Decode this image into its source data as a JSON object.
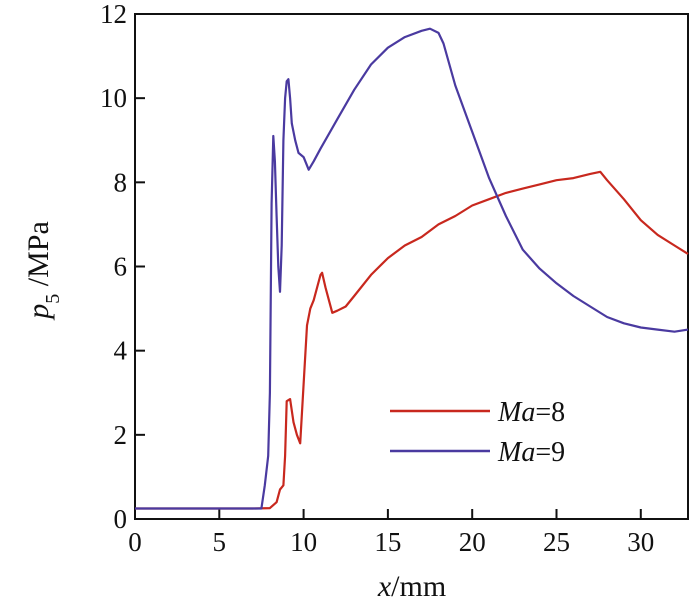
{
  "chart_data": {
    "type": "line",
    "xlabel": {
      "italic": "x",
      "rest": "/mm"
    },
    "ylabel": {
      "italic": "p",
      "sub": "5",
      "rest": " /MPa"
    },
    "xlim": [
      0,
      32.8
    ],
    "ylim": [
      0,
      12
    ],
    "xticks": [
      0,
      5,
      10,
      15,
      20,
      25,
      30
    ],
    "yticks": [
      0,
      2,
      4,
      6,
      8,
      10,
      12
    ],
    "grid": false,
    "legend_position": "lower-right",
    "series": [
      {
        "name": "Ma=8",
        "name_italic": "Ma",
        "name_rest": "=8",
        "color": "#c8281e",
        "x": [
          0,
          5,
          7.0,
          8.0,
          8.4,
          8.6,
          8.7,
          8.8,
          8.9,
          9.0,
          9.2,
          9.4,
          9.6,
          9.8,
          10.0,
          10.2,
          10.4,
          10.6,
          10.8,
          11.0,
          11.1,
          11.3,
          11.5,
          11.7,
          12.0,
          12.5,
          13.0,
          14.0,
          15.0,
          16.0,
          17.0,
          18.0,
          19.0,
          20.0,
          21.0,
          22.0,
          23.0,
          24.0,
          25.0,
          26.0,
          27.0,
          27.6,
          28.0,
          29.0,
          30.0,
          31.0,
          32.0,
          32.8
        ],
        "y": [
          0.25,
          0.25,
          0.25,
          0.26,
          0.4,
          0.7,
          0.75,
          0.8,
          1.5,
          2.8,
          2.85,
          2.3,
          2.0,
          1.8,
          3.2,
          4.6,
          5.0,
          5.2,
          5.5,
          5.8,
          5.85,
          5.5,
          5.2,
          4.9,
          4.95,
          5.05,
          5.3,
          5.8,
          6.2,
          6.5,
          6.7,
          7.0,
          7.2,
          7.45,
          7.6,
          7.75,
          7.85,
          7.95,
          8.05,
          8.1,
          8.2,
          8.25,
          8.05,
          7.6,
          7.1,
          6.75,
          6.5,
          6.3
        ]
      },
      {
        "name": "Ma=9",
        "name_italic": "Ma",
        "name_rest": "=9",
        "color": "#4a3aa0",
        "x": [
          0,
          5,
          7.5,
          7.7,
          7.9,
          8.0,
          8.1,
          8.2,
          8.3,
          8.4,
          8.5,
          8.6,
          8.7,
          8.8,
          8.9,
          9.0,
          9.1,
          9.2,
          9.3,
          9.5,
          9.7,
          10.0,
          10.3,
          10.6,
          11.0,
          12.0,
          13.0,
          14.0,
          15.0,
          16.0,
          17.0,
          17.5,
          18.0,
          18.3,
          19.0,
          20.0,
          21.0,
          22.0,
          23.0,
          24.0,
          25.0,
          26.0,
          27.0,
          28.0,
          29.0,
          30.0,
          31.0,
          32.0,
          32.8
        ],
        "y": [
          0.25,
          0.25,
          0.25,
          0.8,
          1.5,
          3.0,
          7.5,
          9.1,
          8.5,
          7.2,
          6.0,
          5.4,
          6.5,
          9.0,
          10.0,
          10.4,
          10.45,
          10.0,
          9.4,
          9.0,
          8.7,
          8.6,
          8.3,
          8.5,
          8.8,
          9.5,
          10.2,
          10.8,
          11.2,
          11.45,
          11.6,
          11.65,
          11.55,
          11.3,
          10.3,
          9.2,
          8.1,
          7.2,
          6.4,
          5.95,
          5.6,
          5.3,
          5.05,
          4.8,
          4.65,
          4.55,
          4.5,
          4.45,
          4.5
        ]
      }
    ]
  }
}
